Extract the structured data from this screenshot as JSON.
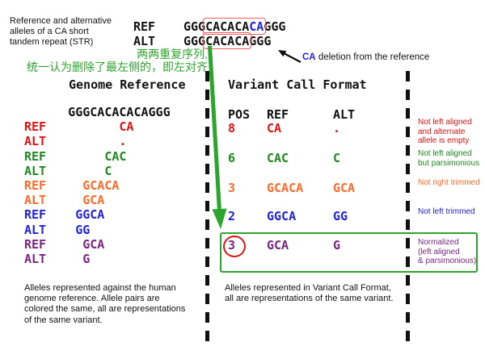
{
  "colors": {
    "red": "#e11212",
    "green": "#1e8a1e",
    "orange": "#ff6a2a",
    "blue": "#2222dd",
    "purple": "#7b2483",
    "bright_green": "#2ba52b",
    "box_red": "#f15b5b",
    "black": "#111111"
  },
  "intro": {
    "text": "Reference and alternative\nalleles of a CA short\ntandem repeat (STR)"
  },
  "top_alleles": {
    "ref_label": "REF",
    "alt_label": "ALT",
    "ref_seq": {
      "pre": "GGG",
      "boxed_black": "CACACA",
      "boxed_blue": "CA",
      "post": "GGG"
    },
    "alt_seq": {
      "pre": "GGG",
      "boxed": "CACACA",
      "post": "GGG"
    }
  },
  "chinese_note": {
    "line1": "两两重复序列,",
    "line2": "统一认为删除了最左侧的，即左对齐"
  },
  "deletion_note": {
    "ca": "CA",
    "rest": " deletion from the reference"
  },
  "genome_panel": {
    "title": "Genome Reference",
    "reference": "GGGCACACACAGGG",
    "ref_label": "REF",
    "alt_label": "ALT",
    "pairs": [
      {
        "color": "red",
        "ref": "CA",
        "alt": ".",
        "pad": 7
      },
      {
        "color": "green",
        "ref": "CAC",
        "alt": "C",
        "pad": 5
      },
      {
        "color": "orange",
        "ref": "GCACA",
        "alt": "GCA",
        "pad": 2
      },
      {
        "color": "blue",
        "ref": "GGCA",
        "alt": "GG",
        "pad": 1
      },
      {
        "color": "purple",
        "ref": "GCA",
        "alt": "G",
        "pad": 2
      }
    ],
    "caption": "Alleles represented against the human\ngenome reference.  Allele pairs are\ncolored the same, all are representations\nof the same variant."
  },
  "vcf_panel": {
    "title": "Variant Call Format",
    "headers": {
      "pos": "POS",
      "ref": "REF",
      "alt": "ALT"
    },
    "rows": [
      {
        "pos": "8",
        "ref": "CA",
        "alt": ".",
        "color": "red",
        "note": "Not left aligned\nand alternate\nallele is empty"
      },
      {
        "pos": "6",
        "ref": "CAC",
        "alt": "C",
        "color": "green",
        "note": "Not left aligned\nbut parsimonious"
      },
      {
        "pos": "3",
        "ref": "GCACA",
        "alt": "GCA",
        "color": "orange",
        "note": "Not right trimmed"
      },
      {
        "pos": "2",
        "ref": "GGCA",
        "alt": "GG",
        "color": "blue",
        "note": "Not left trimmed"
      },
      {
        "pos": "3",
        "ref": "GCA",
        "alt": "G",
        "color": "purple",
        "note": "Normalized\n(left aligned\n& parsimonious)",
        "circled": true,
        "boxed": true
      }
    ],
    "caption": "Alleles represented in Variant Call Format,\nall are representations of the same variant."
  }
}
